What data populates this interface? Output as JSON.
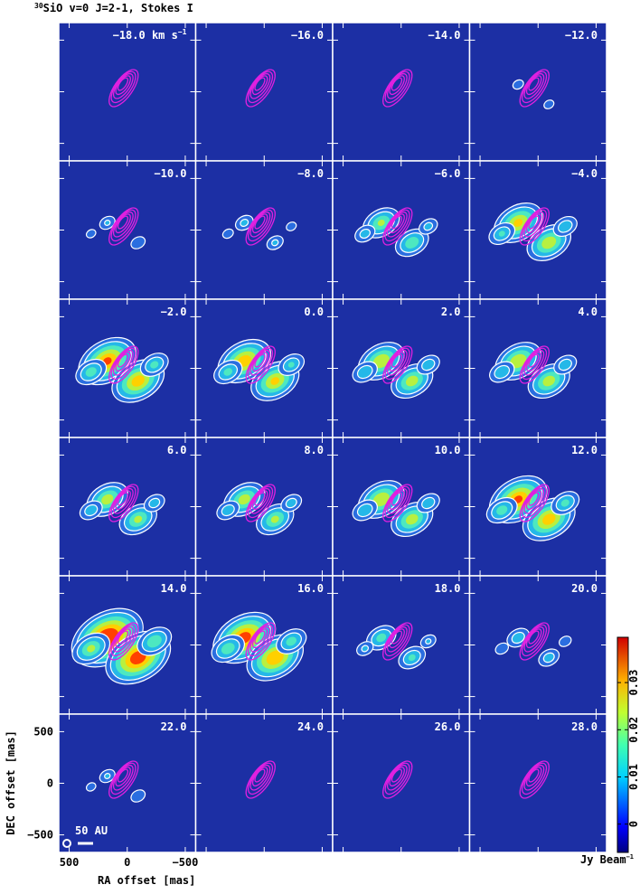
{
  "chart_data": {
    "type": "channel-map",
    "title_isotope": "30",
    "title": "SiO v=0 J=2-1, Stokes I",
    "channels": [
      "−18.0",
      "−16.0",
      "−14.0",
      "−12.0",
      "−10.0",
      "−8.0",
      "−6.0",
      "−4.0",
      "−2.0",
      "0.0",
      "2.0",
      "4.0",
      "6.0",
      "8.0",
      "10.0",
      "12.0",
      "14.0",
      "16.0",
      "18.0",
      "20.0",
      "22.0",
      "24.0",
      "26.0",
      "28.0"
    ],
    "channel_unit": "km s",
    "channel_unit_exponent": "−1",
    "xlabel": "RA offset [mas]",
    "ylabel": "DEC offset [mas]",
    "xlim": [
      590,
      -590
    ],
    "ylim": [
      -670,
      670
    ],
    "xticks": [
      500,
      0,
      {
        "value": -500,
        "label": "−500"
      }
    ],
    "yticks": [
      500,
      0,
      {
        "value": -500,
        "label": "−500"
      }
    ],
    "colorbar": {
      "lim": [
        -0.006,
        0.0396
      ],
      "ticks": [
        0,
        0.01,
        0.02,
        0.03
      ],
      "label": "Jy Beam",
      "label_exponent": "−1"
    },
    "scale_bar_label": "50 AU"
  }
}
